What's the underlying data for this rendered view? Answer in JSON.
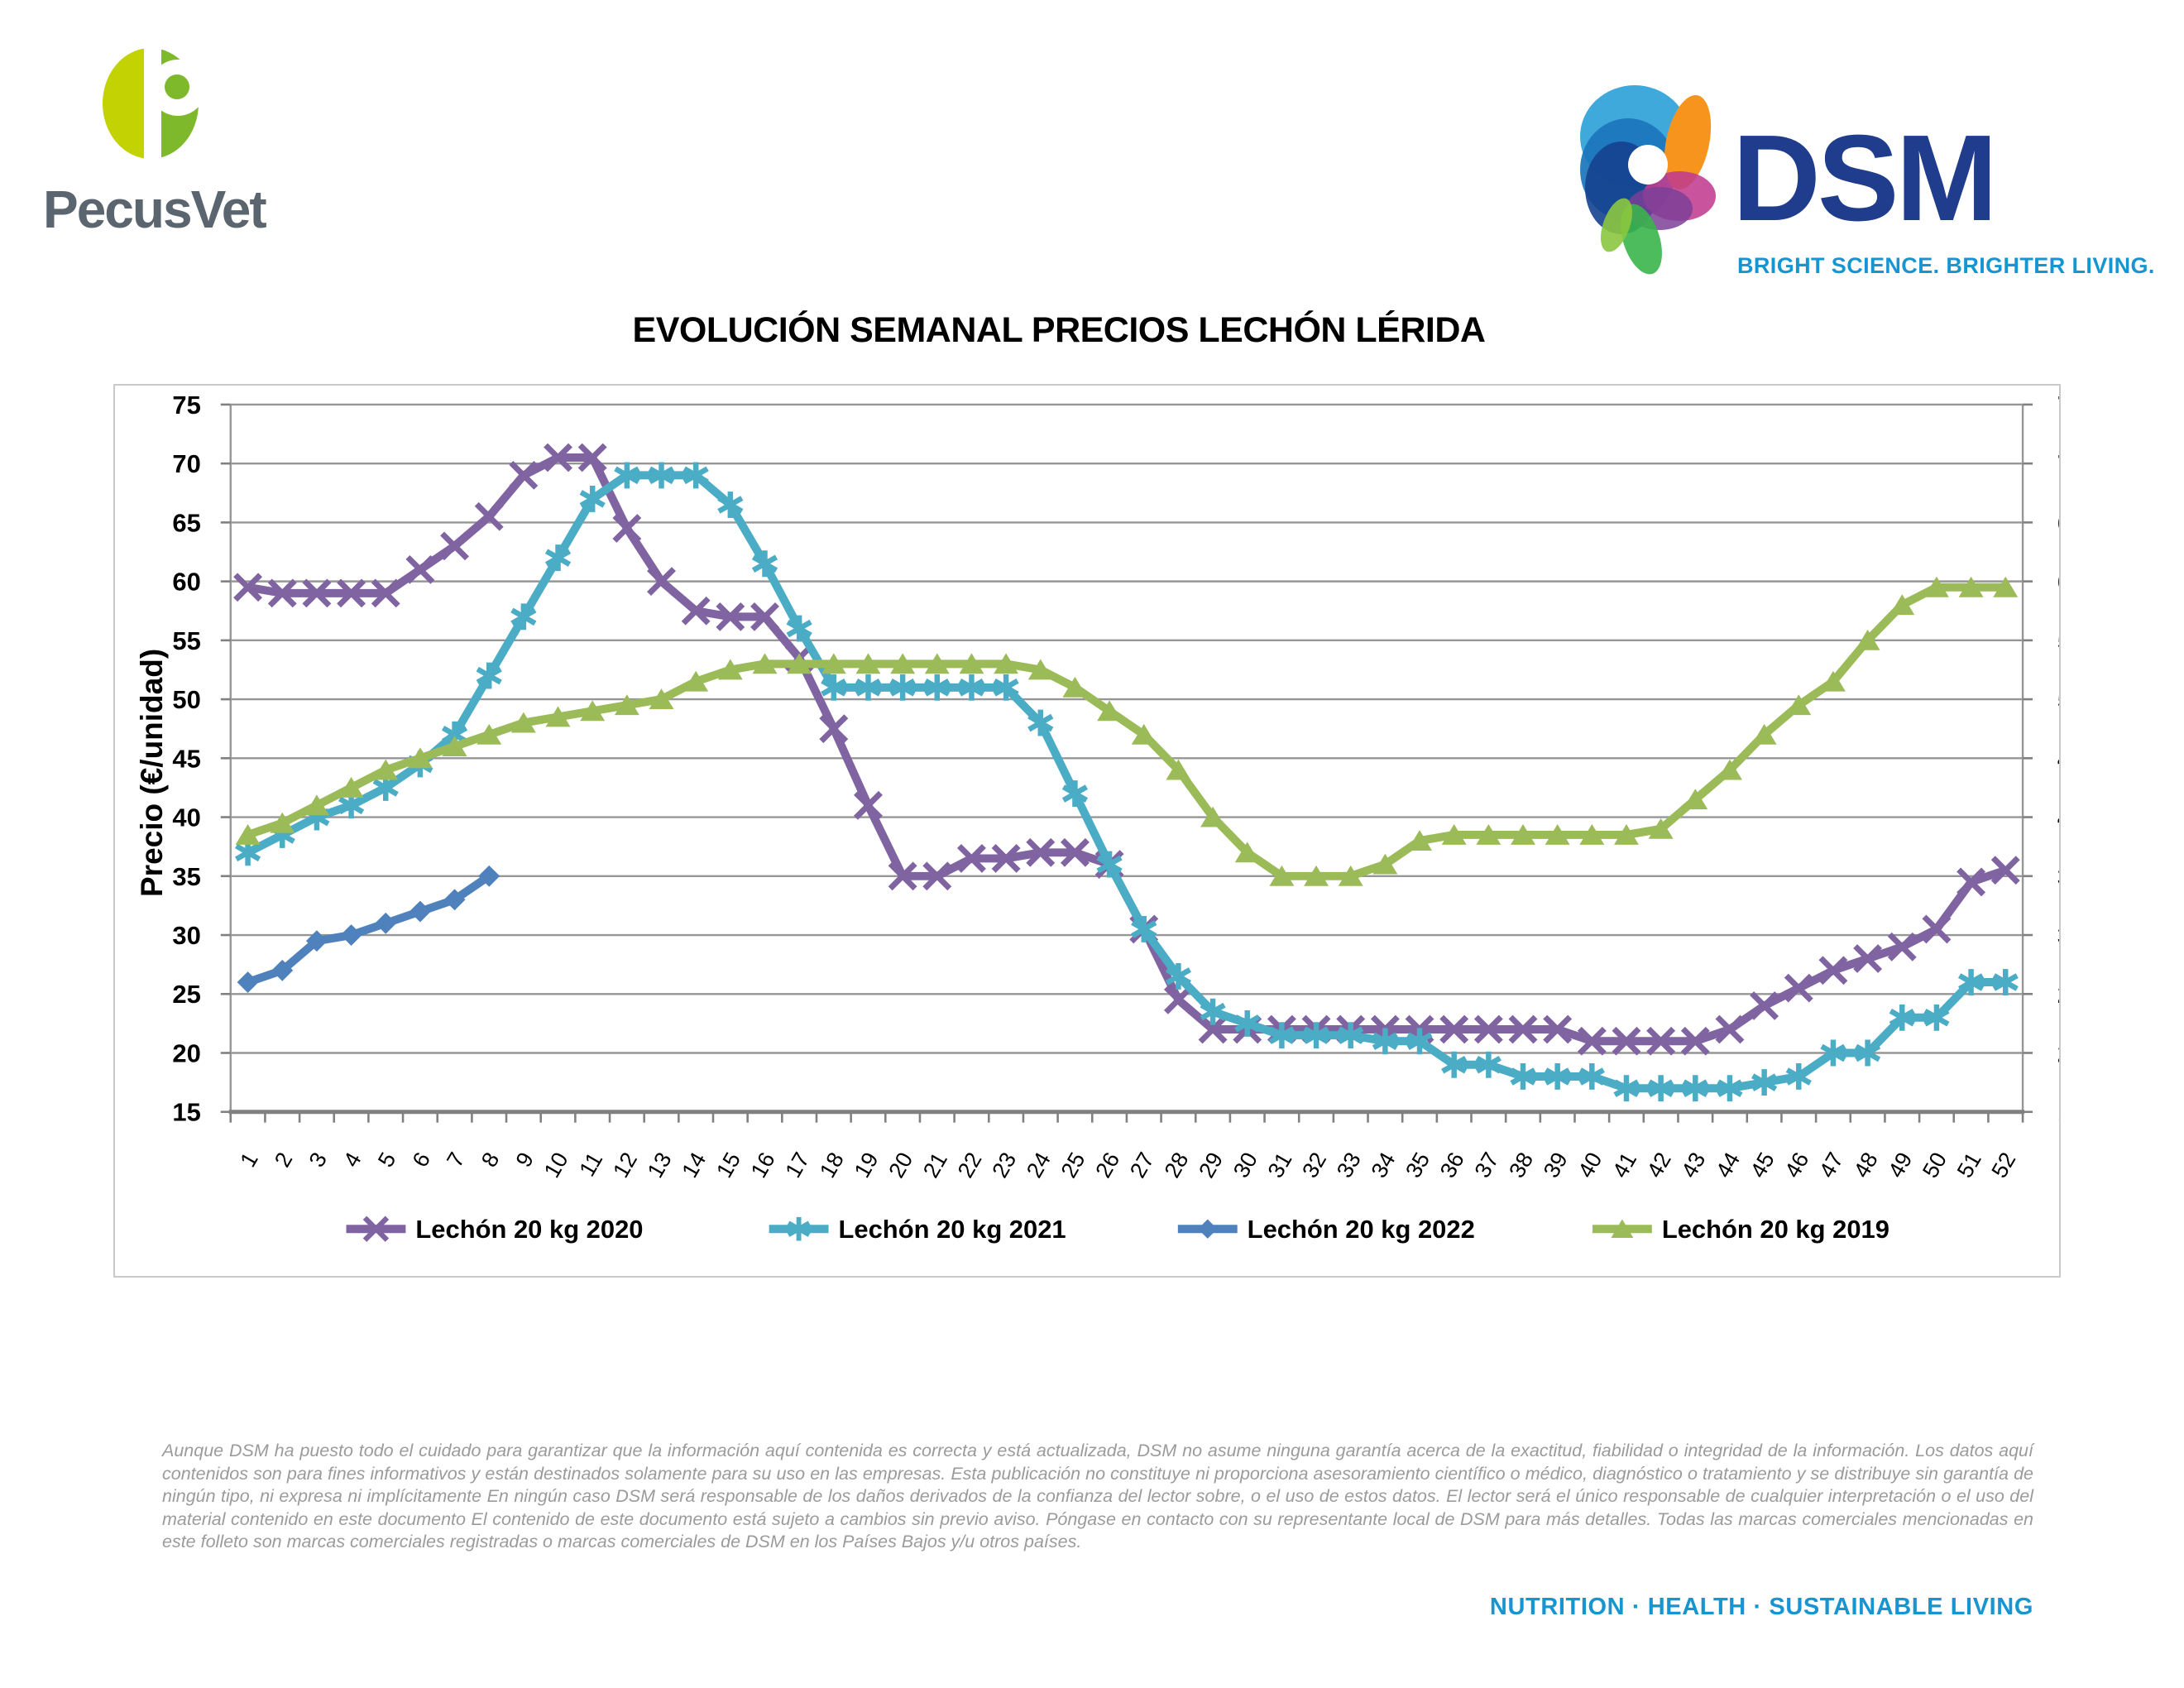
{
  "header": {
    "pecusvet": {
      "wordmark": "PecusVet",
      "monogram": "P"
    },
    "dsm": {
      "wordmark": "DSM",
      "tagline": "BRIGHT SCIENCE. BRIGHTER LIVING."
    }
  },
  "title": "EVOLUCIÓN SEMANAL PRECIOS LECHÓN LÉRIDA",
  "brand_colors": {
    "dsm_wordmark": "#1F3D8C",
    "dsm_tagline": "#1795D1",
    "pecusvet_wordmark": "#5B6570",
    "pecusvet_green_light": "#C3D202",
    "pecusvet_green_dark": "#7DB92B",
    "footer_text": "#9B9B9B",
    "gridline": "#969696",
    "axis": "#808080"
  },
  "chart_data": {
    "type": "line",
    "title": "EVOLUCIÓN SEMANAL PRECIOS LECHÓN LÉRIDA",
    "xlabel": "",
    "ylabel": "Precio (€/unidad)",
    "ylim": [
      15,
      75
    ],
    "y_ticks": [
      15,
      20,
      25,
      30,
      35,
      40,
      45,
      50,
      55,
      60,
      65,
      70,
      75
    ],
    "x_ticks": [
      1,
      2,
      3,
      4,
      5,
      6,
      7,
      8,
      9,
      10,
      11,
      12,
      13,
      14,
      15,
      16,
      17,
      18,
      19,
      20,
      21,
      22,
      23,
      24,
      25,
      26,
      27,
      28,
      29,
      30,
      31,
      32,
      33,
      34,
      35,
      36,
      37,
      38,
      39,
      40,
      41,
      42,
      43,
      44,
      45,
      46,
      47,
      48,
      49,
      50,
      51,
      52
    ],
    "grid": true,
    "legend_position": "bottom",
    "y_axis_labels_on_both_sides": true,
    "series": [
      {
        "name": "Lechón 20 kg 2020",
        "color": "#8064A2",
        "marker": "x",
        "values": [
          59.5,
          59,
          59,
          59,
          59,
          61,
          63,
          65.5,
          69,
          70.5,
          70.5,
          64.5,
          60,
          57.5,
          57,
          57,
          53.5,
          47.5,
          41,
          35,
          35,
          36.5,
          36.5,
          37,
          37,
          36,
          30.5,
          24.5,
          22,
          22,
          22,
          22,
          22,
          22,
          22,
          22,
          22,
          22,
          22,
          21,
          21,
          21,
          21,
          22,
          24,
          25.5,
          27,
          28,
          29,
          30.5,
          34.5,
          35.5
        ]
      },
      {
        "name": "Lechón 20 kg 2021",
        "color": "#4BACC6",
        "marker": "asterisk",
        "values": [
          37,
          38.5,
          40,
          41,
          42.5,
          44.5,
          47,
          52,
          57,
          62,
          67,
          69,
          69,
          69,
          66.5,
          61.5,
          56,
          51,
          51,
          51,
          51,
          51,
          51,
          48,
          42,
          36,
          30.5,
          26.5,
          23.5,
          22.5,
          21.5,
          21.5,
          21.5,
          21,
          21,
          19,
          19,
          18,
          18,
          18,
          17,
          17,
          17,
          17,
          17.5,
          18,
          20,
          20,
          23,
          23,
          26,
          26
        ]
      },
      {
        "name": "Lechón 20 kg 2022",
        "color": "#4F81BD",
        "marker": "diamond",
        "values": [
          26,
          27,
          29.5,
          30,
          31,
          32,
          33,
          35
        ]
      },
      {
        "name": "Lechón 20 kg 2019",
        "color": "#9BBB59",
        "marker": "triangle",
        "values": [
          38.5,
          39.5,
          41,
          42.5,
          44,
          45,
          46,
          47,
          48,
          48.5,
          49,
          49.5,
          50,
          51.5,
          52.5,
          53,
          53,
          53,
          53,
          53,
          53,
          53,
          53,
          52.5,
          51,
          49,
          47,
          44,
          40,
          37,
          35,
          35,
          35,
          36,
          38,
          38.5,
          38.5,
          38.5,
          38.5,
          38.5,
          38.5,
          39,
          41.5,
          44,
          47,
          49.5,
          51.5,
          55,
          58,
          59.5,
          59.5,
          59.5
        ]
      }
    ]
  },
  "footer": {
    "disclaimer": "Aunque DSM ha puesto todo el cuidado para garantizar que la información aquí contenida es correcta y está actualizada, DSM no asume ninguna garantía acerca de la exactitud, fiabilidad o integridad de la información. Los datos aquí contenidos son para fines informativos y están destinados solamente para su uso en las empresas. Esta publicación no constituye ni proporciona asesoramiento científico o médico, diagnóstico o tratamiento y se distribuye sin garantía de ningún tipo, ni expresa ni implícitamente En ningún caso DSM será responsable de los daños derivados de la confianza del lector sobre, o el uso de estos datos. El lector será el único responsable de cualquier interpretación o el uso del material contenido en este documento El contenido de este documento está sujeto a cambios sin previo aviso. Póngase en contacto con su representante local de DSM para más detalles. Todas las marcas comerciales mencionadas en este folleto son marcas comerciales registradas o marcas comerciales de DSM en los Países Bajos y/u otros países.",
    "brand_line": "NUTRITION · HEALTH · SUSTAINABLE LIVING"
  }
}
